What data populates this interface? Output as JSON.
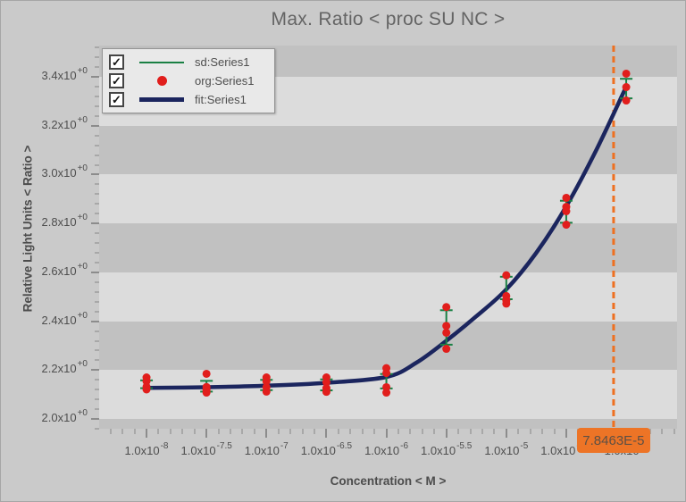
{
  "icons": {
    "checkmark": "✓"
  },
  "legend": {
    "items": [
      {
        "label": "sd:Series1",
        "checked": true,
        "marker": "line",
        "color": "#1a8044"
      },
      {
        "label": "org:Series1",
        "checked": true,
        "marker": "dot",
        "color": "#e11e1c"
      },
      {
        "label": "fit:Series1",
        "checked": true,
        "marker": "thick-line",
        "color": "#1b255e"
      }
    ]
  },
  "chart_data": {
    "type": "scatter",
    "title": "Max. Ratio < proc SU NC >",
    "xlabel": "Concentration < M >",
    "ylabel": "Relative Light Units < Ratio >",
    "x_scale": "log10",
    "xlim_log": [
      -8.395,
      -3.576
    ],
    "ylim": [
      1.96,
      3.528
    ],
    "band_origin": 2.0,
    "band_step": 0.2,
    "grid": "alternating-bands",
    "legend_position": "top-left-inside",
    "colors": {
      "band_light": "#dcdcdc",
      "band_dark": "#c1c1c1",
      "sd": "#1a8044",
      "org": "#e11e1c",
      "fit": "#1b255e",
      "vline": "#ee7021",
      "badge_bg": "#ed7426"
    },
    "y_ticks": [
      {
        "value": 2.0,
        "base": "2.0x10",
        "exp": "+0"
      },
      {
        "value": 2.2,
        "base": "2.2x10",
        "exp": "+0"
      },
      {
        "value": 2.4,
        "base": "2.4x10",
        "exp": "+0"
      },
      {
        "value": 2.6,
        "base": "2.6x10",
        "exp": "+0"
      },
      {
        "value": 2.8,
        "base": "2.8x10",
        "exp": "+0"
      },
      {
        "value": 3.0,
        "base": "3.0x10",
        "exp": "+0"
      },
      {
        "value": 3.2,
        "base": "3.2x10",
        "exp": "+0"
      },
      {
        "value": 3.4,
        "base": "3.4x10",
        "exp": "+0"
      }
    ],
    "y_minor_step": 0.04,
    "x_ticks": [
      {
        "log": -8.0,
        "base": "1.0x10",
        "exp": "-8"
      },
      {
        "log": -7.5,
        "base": "1.0x10",
        "exp": "-7.5"
      },
      {
        "log": -7.0,
        "base": "1.0x10",
        "exp": "-7"
      },
      {
        "log": -6.5,
        "base": "1.0x10",
        "exp": "-6.5"
      },
      {
        "log": -6.0,
        "base": "1.0x10",
        "exp": "-6"
      },
      {
        "log": -5.5,
        "base": "1.0x10",
        "exp": "-5.5"
      },
      {
        "log": -5.0,
        "base": "1.0x10",
        "exp": "-5"
      },
      {
        "log": -4.5,
        "base": "1.0x10",
        "exp": "-4.5"
      },
      {
        "log": -4.0,
        "base": "1.0x10",
        "exp": "-4"
      }
    ],
    "x_minor_step": 0.1,
    "series": [
      {
        "name": "sd:Series1",
        "type": "errorbar",
        "color": "#1a8044",
        "points": [
          {
            "log_x": -8.0,
            "lo": 2.126,
            "hi": 2.158
          },
          {
            "log_x": -7.5,
            "lo": 2.112,
            "hi": 2.156
          },
          {
            "log_x": -7.0,
            "lo": 2.118,
            "hi": 2.16
          },
          {
            "log_x": -6.5,
            "lo": 2.117,
            "hi": 2.162
          },
          {
            "log_x": -6.0,
            "lo": 2.125,
            "hi": 2.184
          },
          {
            "log_x": -5.5,
            "lo": 2.304,
            "hi": 2.445
          },
          {
            "log_x": -5.0,
            "lo": 2.49,
            "hi": 2.582
          },
          {
            "log_x": -4.5,
            "lo": 2.803,
            "hi": 2.893
          },
          {
            "log_x": -4.0,
            "lo": 3.312,
            "hi": 3.392
          }
        ]
      },
      {
        "name": "org:Series1",
        "type": "scatter",
        "color": "#e11e1c",
        "points": [
          {
            "log_x": -8.0,
            "ys": [
              2.17,
              2.155,
              2.132,
              2.121
            ]
          },
          {
            "log_x": -7.5,
            "ys": [
              2.185,
              2.131,
              2.119,
              2.108
            ]
          },
          {
            "log_x": -7.0,
            "ys": [
              2.17,
              2.154,
              2.13,
              2.112
            ]
          },
          {
            "log_x": -6.5,
            "ys": [
              2.17,
              2.15,
              2.126,
              2.111
            ]
          },
          {
            "log_x": -6.0,
            "ys": [
              2.208,
              2.188,
              2.13,
              2.108
            ]
          },
          {
            "log_x": -5.5,
            "ys": [
              2.458,
              2.381,
              2.353,
              2.287
            ]
          },
          {
            "log_x": -5.0,
            "ys": [
              2.588,
              2.503,
              2.486,
              2.472
            ]
          },
          {
            "log_x": -4.5,
            "ys": [
              2.905,
              2.868,
              2.85,
              2.795
            ]
          },
          {
            "log_x": -4.0,
            "ys": [
              3.413,
              3.358,
              3.303
            ]
          }
        ]
      },
      {
        "name": "fit:Series1",
        "type": "line",
        "color": "#1b255e",
        "points": [
          [
            -8.0,
            2.127
          ],
          [
            -7.5,
            2.13
          ],
          [
            -7.0,
            2.136
          ],
          [
            -6.5,
            2.148
          ],
          [
            -6.0,
            2.172
          ],
          [
            -5.75,
            2.23
          ],
          [
            -5.5,
            2.32
          ],
          [
            -5.25,
            2.42
          ],
          [
            -5.0,
            2.53
          ],
          [
            -4.75,
            2.68
          ],
          [
            -4.5,
            2.87
          ],
          [
            -4.25,
            3.1
          ],
          [
            -4.0,
            3.36
          ]
        ]
      }
    ],
    "vline": {
      "log_x": -4.1053,
      "label": "7.8463E-5"
    }
  }
}
